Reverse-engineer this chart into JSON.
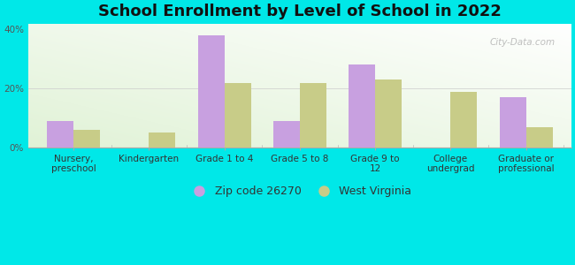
{
  "title": "School Enrollment by Level of School in 2022",
  "categories": [
    "Nursery,\npreschool",
    "Kindergarten",
    "Grade 1 to 4",
    "Grade 5 to 8",
    "Grade 9 to\n12",
    "College\nundergrad",
    "Graduate or\nprofessional"
  ],
  "zip_values": [
    9,
    0,
    38,
    9,
    28,
    0,
    17
  ],
  "wv_values": [
    6,
    5,
    22,
    22,
    23,
    19,
    7
  ],
  "zip_color": "#c8a0e0",
  "wv_color": "#c8cc88",
  "ylim": [
    0,
    42
  ],
  "yticks": [
    0,
    20,
    40
  ],
  "ytick_labels": [
    "0%",
    "20%",
    "40%"
  ],
  "legend_zip": "Zip code 26270",
  "legend_wv": "West Virginia",
  "background_color": "#00e8e8",
  "watermark": "City-Data.com",
  "bar_width": 0.35,
  "title_fontsize": 13,
  "tick_fontsize": 7.5,
  "legend_fontsize": 9
}
